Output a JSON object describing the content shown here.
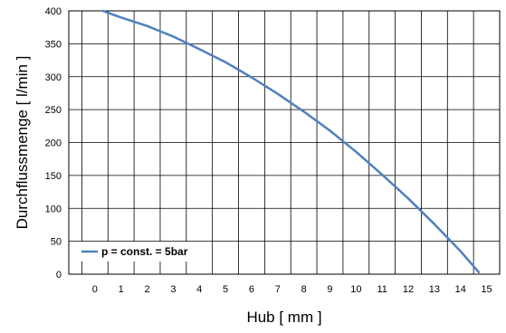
{
  "chart_data": {
    "type": "line",
    "xlabel": "Hub [ mm ]",
    "ylabel": "Durchflussmenge [ l/min ]",
    "xlim": [
      -1,
      15.5
    ],
    "ylim": [
      0,
      400
    ],
    "x_ticks": [
      0,
      1,
      2,
      3,
      4,
      5,
      6,
      7,
      8,
      9,
      10,
      11,
      12,
      13,
      14,
      15
    ],
    "y_ticks": [
      0,
      50,
      100,
      150,
      200,
      250,
      300,
      350,
      400
    ],
    "grid": true,
    "legend_position": "bottom-left",
    "series": [
      {
        "name": "p = const. = 5bar",
        "color": "#4f81bd",
        "x": [
          0.3,
          1,
          2,
          3,
          4,
          5,
          6,
          7,
          8,
          9,
          10,
          11,
          12,
          13,
          14,
          14.7
        ],
        "y": [
          400,
          390,
          377,
          361,
          342,
          322,
          299,
          274,
          247,
          218,
          186,
          151,
          115,
          76,
          35,
          3
        ]
      }
    ]
  }
}
